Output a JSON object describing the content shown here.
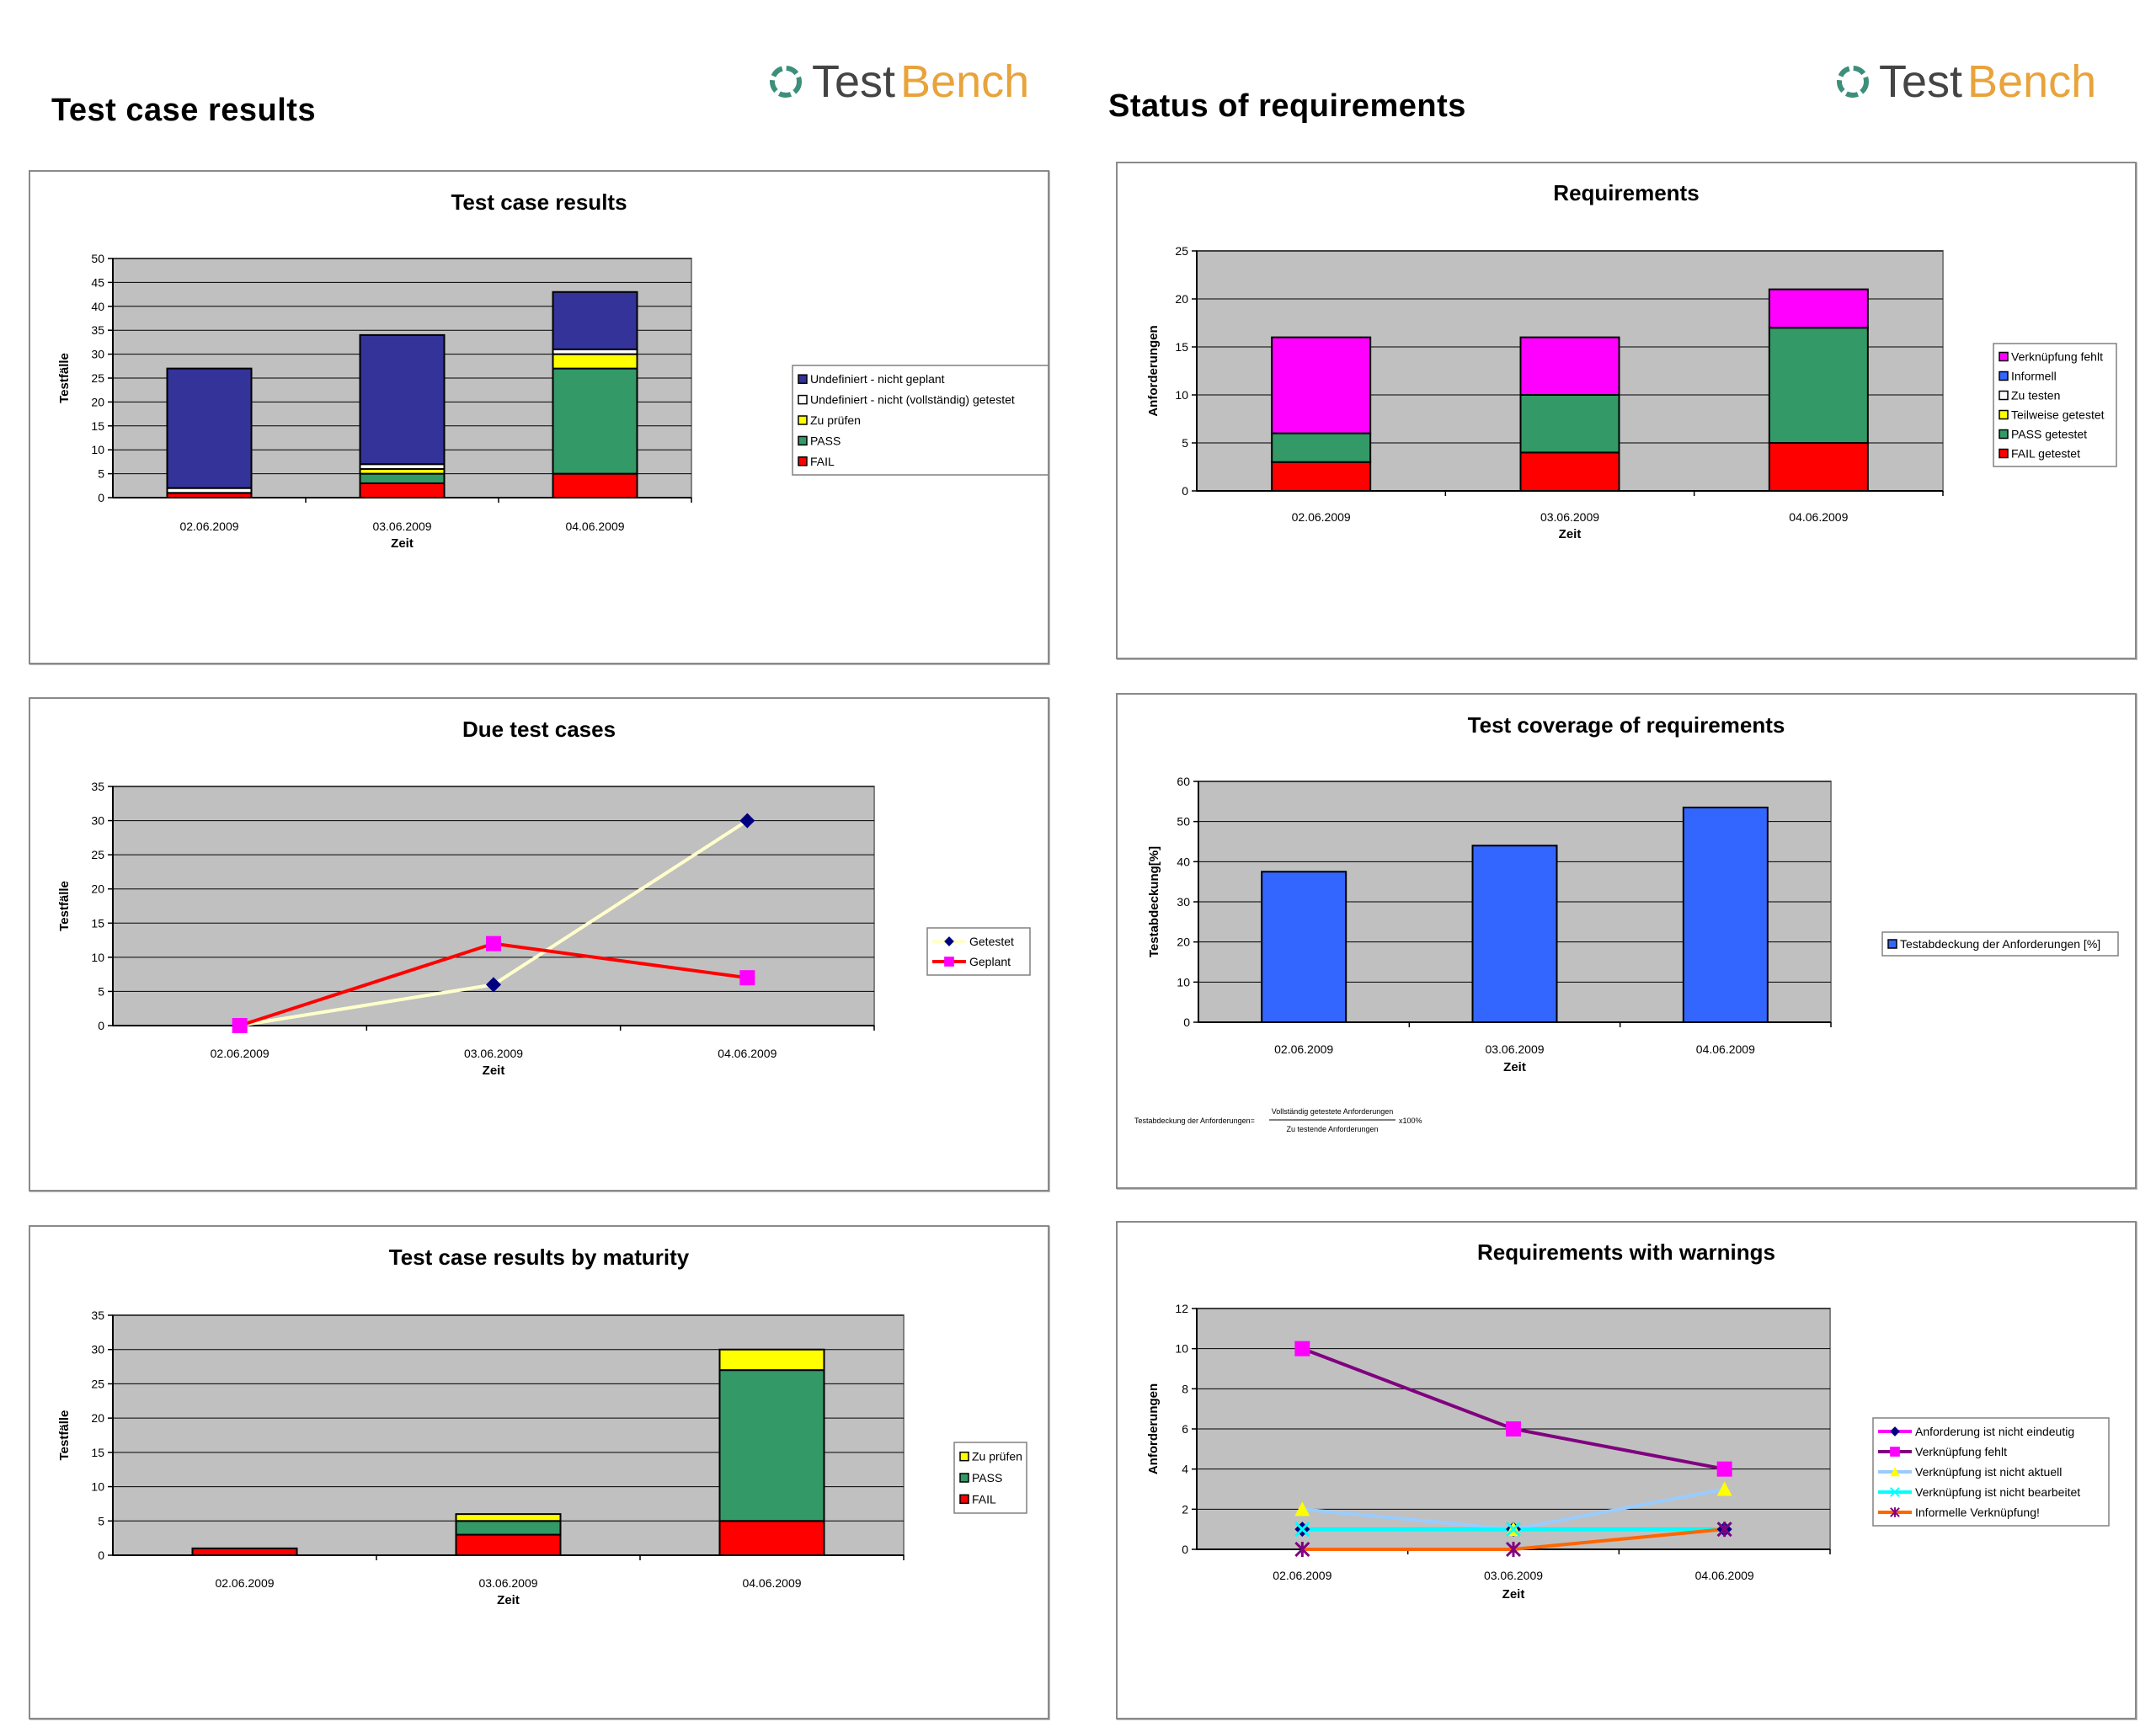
{
  "left_header": {
    "title": "Test case results",
    "logo_a": "Test",
    "logo_b": "Bench"
  },
  "right_header": {
    "title": "Status of requirements",
    "logo_a": "Test",
    "logo_b": "Bench"
  },
  "colors": {
    "plot_bg": "#c0c0c0",
    "navy": "#333399",
    "white": "#ffffff",
    "yellow": "#ffff00",
    "green": "#339966",
    "red": "#ff0000",
    "magenta": "#ff00ff",
    "blue": "#3366ff",
    "cream": "#ffffcc",
    "purple": "#800080",
    "lightblue": "#99ccff",
    "cyan": "#00ffff",
    "orange": "#ff6600"
  },
  "chart_data": [
    {
      "id": "c1",
      "type": "bar",
      "stacked": true,
      "title": "Test case results",
      "xlabel": "Zeit",
      "ylabel": "Testfälle",
      "categories": [
        "02.06.2009",
        "03.06.2009",
        "04.06.2009"
      ],
      "ylim": [
        0,
        50
      ],
      "yticks": [
        0,
        5,
        10,
        15,
        20,
        25,
        30,
        35,
        40,
        45,
        50
      ],
      "legend_position": "right",
      "series": [
        {
          "name": "FAIL",
          "color": "#ff0000",
          "values": [
            1,
            3,
            5
          ]
        },
        {
          "name": "PASS",
          "color": "#339966",
          "values": [
            0,
            2,
            22
          ]
        },
        {
          "name": "Zu prüfen",
          "color": "#ffff00",
          "values": [
            0,
            1,
            3
          ]
        },
        {
          "name": "Undefiniert - nicht (vollständig) getestet",
          "color": "#ffffff",
          "values": [
            1,
            1,
            1
          ]
        },
        {
          "name": "Undefiniert - nicht geplant",
          "color": "#333399",
          "values": [
            25,
            27,
            12
          ]
        }
      ]
    },
    {
      "id": "c2",
      "type": "line",
      "title": "Due test cases",
      "xlabel": "Zeit",
      "ylabel": "Testfälle",
      "categories": [
        "02.06.2009",
        "03.06.2009",
        "04.06.2009"
      ],
      "ylim": [
        0,
        35
      ],
      "yticks": [
        0,
        5,
        10,
        15,
        20,
        25,
        30,
        35
      ],
      "legend_position": "right",
      "series": [
        {
          "name": "Getestet",
          "color": "#ffffcc",
          "marker": "diamond",
          "marker_color": "#000080",
          "values": [
            0,
            6,
            30
          ]
        },
        {
          "name": "Geplant",
          "color": "#ff0000",
          "marker": "square",
          "marker_color": "#ff00ff",
          "values": [
            0,
            12,
            7
          ]
        }
      ]
    },
    {
      "id": "c3",
      "type": "bar",
      "stacked": true,
      "title": "Test case results by maturity",
      "xlabel": "Zeit",
      "ylabel": "Testfälle",
      "categories": [
        "02.06.2009",
        "03.06.2009",
        "04.06.2009"
      ],
      "ylim": [
        0,
        35
      ],
      "yticks": [
        0,
        5,
        10,
        15,
        20,
        25,
        30,
        35
      ],
      "legend_position": "right",
      "series": [
        {
          "name": "FAIL",
          "color": "#ff0000",
          "values": [
            1,
            3,
            5
          ]
        },
        {
          "name": "PASS",
          "color": "#339966",
          "values": [
            0,
            2,
            22
          ]
        },
        {
          "name": "Zu prüfen",
          "color": "#ffff00",
          "values": [
            0,
            1,
            3
          ]
        }
      ]
    },
    {
      "id": "c4",
      "type": "bar",
      "stacked": true,
      "title": "Requirements",
      "xlabel": "Zeit",
      "ylabel": "Anforderungen",
      "categories": [
        "02.06.2009",
        "03.06.2009",
        "04.06.2009"
      ],
      "ylim": [
        0,
        25
      ],
      "yticks": [
        0,
        5,
        10,
        15,
        20,
        25
      ],
      "legend_position": "right",
      "series": [
        {
          "name": "FAIL getestet",
          "color": "#ff0000",
          "values": [
            3,
            4,
            5
          ]
        },
        {
          "name": "PASS getestet",
          "color": "#339966",
          "values": [
            3,
            6,
            12
          ]
        },
        {
          "name": "Teilweise getestet",
          "color": "#ffff00",
          "values": [
            0,
            0,
            0
          ]
        },
        {
          "name": "Zu testen",
          "color": "#ffffff",
          "values": [
            0,
            0,
            0
          ]
        },
        {
          "name": "Informell",
          "color": "#3366ff",
          "values": [
            0,
            0,
            0
          ]
        },
        {
          "name": "Verknüpfung fehlt",
          "color": "#ff00ff",
          "values": [
            10,
            6,
            4
          ]
        }
      ]
    },
    {
      "id": "c5",
      "type": "bar",
      "title": "Test coverage of requirements",
      "xlabel": "Zeit",
      "ylabel": "Testabdeckung[%]",
      "categories": [
        "02.06.2009",
        "03.06.2009",
        "04.06.2009"
      ],
      "ylim": [
        0,
        60
      ],
      "yticks": [
        0,
        10,
        20,
        30,
        40,
        50,
        60
      ],
      "legend_position": "right",
      "series": [
        {
          "name": "Testabdeckung der Anforderungen [%]",
          "color": "#3366ff",
          "values": [
            37.5,
            44,
            53.5
          ]
        }
      ],
      "formula": {
        "lhs": "Testabdeckung der Anforderungen=",
        "numerator": "Vollständig getestete Anforderungen",
        "denominator": "Zu testende Anforderungen",
        "factor": "x100%"
      }
    },
    {
      "id": "c6",
      "type": "line",
      "title": "Requirements with warnings",
      "xlabel": "Zeit",
      "ylabel": "Anforderungen",
      "categories": [
        "02.06.2009",
        "03.06.2009",
        "04.06.2009"
      ],
      "ylim": [
        0,
        12
      ],
      "yticks": [
        0,
        2,
        4,
        6,
        8,
        10,
        12
      ],
      "legend_position": "right",
      "series": [
        {
          "name": "Anforderung ist nicht eindeutig",
          "color": "#ff00ff",
          "marker": "diamond",
          "marker_color": "#000080",
          "values": [
            1,
            1,
            1
          ]
        },
        {
          "name": "Verknüpfung fehlt",
          "color": "#800080",
          "marker": "square",
          "marker_color": "#ff00ff",
          "values": [
            10,
            6,
            4
          ]
        },
        {
          "name": "Verknüpfung ist nicht aktuell",
          "color": "#99ccff",
          "marker": "triangle",
          "marker_color": "#ffff00",
          "values": [
            2,
            1,
            3
          ]
        },
        {
          "name": "Verknüpfung ist nicht bearbeitet",
          "color": "#00ffff",
          "marker": "x",
          "marker_color": "#00ffff",
          "values": [
            1,
            1,
            1
          ]
        },
        {
          "name": "Informelle Verknüpfung!",
          "color": "#ff6600",
          "marker": "star",
          "marker_color": "#800080",
          "values": [
            0,
            0,
            1
          ]
        }
      ]
    }
  ]
}
